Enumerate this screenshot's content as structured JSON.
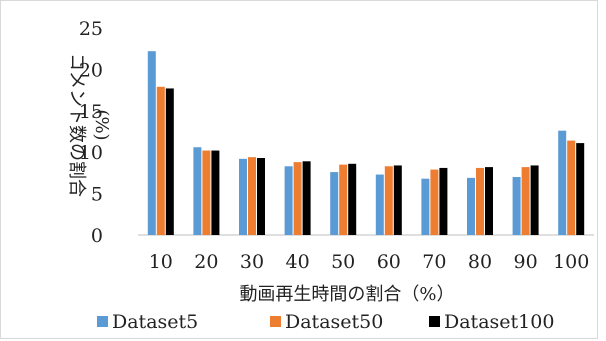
{
  "chart_data": {
    "type": "bar",
    "title": "",
    "categories": [
      "10",
      "20",
      "30",
      "40",
      "50",
      "60",
      "70",
      "80",
      "90",
      "100"
    ],
    "series": [
      {
        "name": "Dataset5",
        "color": "#5b9bd5",
        "values": [
          22.2,
          10.6,
          9.2,
          8.3,
          7.6,
          7.3,
          6.8,
          6.9,
          7.0,
          12.6
        ]
      },
      {
        "name": "Dataset50",
        "color": "#ed7d31",
        "values": [
          17.9,
          10.2,
          9.4,
          8.8,
          8.5,
          8.3,
          7.9,
          8.1,
          8.2,
          11.4
        ]
      },
      {
        "name": "Dataset100",
        "color": "#000000",
        "values": [
          17.7,
          10.2,
          9.3,
          8.9,
          8.6,
          8.4,
          8.1,
          8.2,
          8.4,
          11.1
        ]
      }
    ],
    "xlabel": "動画再生時間の割合（%）",
    "ylabel": "コメント数の割合",
    "ylabel_unit": "(%)",
    "ylim": [
      0,
      25
    ],
    "yticks": [
      0,
      5,
      10,
      15,
      20,
      25
    ],
    "grid": false,
    "legend": "bottom"
  }
}
